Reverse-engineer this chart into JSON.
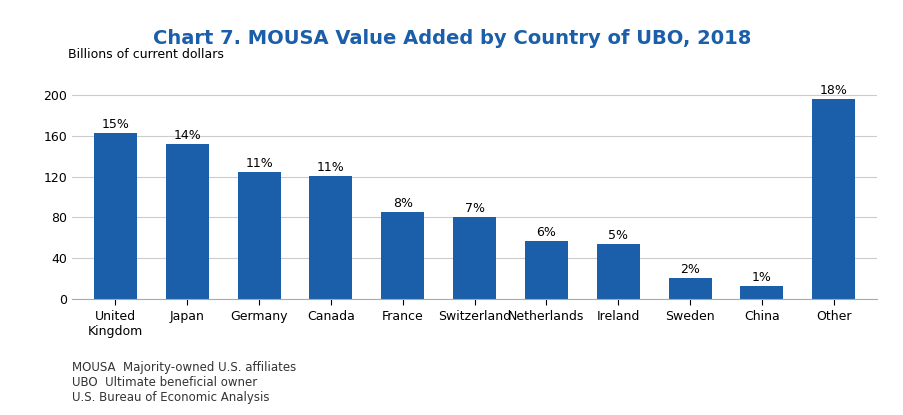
{
  "title": "Chart 7. MOUSA Value Added by Country of UBO, 2018",
  "ylabel": "Billions of current dollars",
  "categories": [
    "United\nKingdom",
    "Japan",
    "Germany",
    "Canada",
    "France",
    "Switzerland",
    "Netherlands",
    "Ireland",
    "Sweden",
    "China",
    "Other"
  ],
  "values": [
    163,
    152,
    124,
    121,
    85,
    80,
    57,
    54,
    20,
    13,
    196
  ],
  "percentages": [
    "15%",
    "14%",
    "11%",
    "11%",
    "8%",
    "7%",
    "6%",
    "5%",
    "2%",
    "1%",
    "18%"
  ],
  "bar_color": "#1b5faa",
  "ylim": [
    0,
    220
  ],
  "yticks": [
    0,
    40,
    80,
    120,
    160,
    200
  ],
  "title_color": "#1b5faa",
  "title_fontsize": 14,
  "ylabel_fontsize": 9,
  "tick_fontsize": 9,
  "pct_fontsize": 9,
  "footnote_lines": [
    "MOUSA  Majority-owned U.S. affiliates",
    "UBO  Ultimate beneficial owner",
    "U.S. Bureau of Economic Analysis"
  ],
  "footnote_fontsize": 8.5,
  "background_color": "#ffffff",
  "grid_color": "#cccccc"
}
